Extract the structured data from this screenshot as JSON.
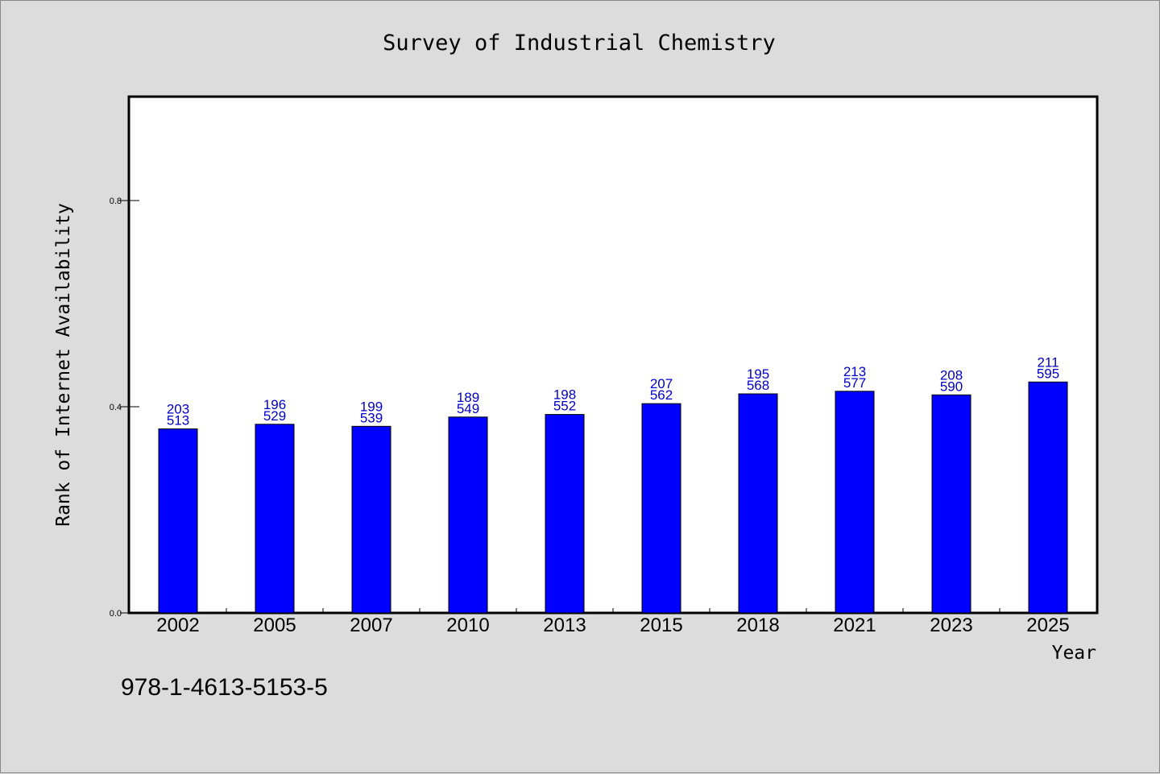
{
  "chart_data": {
    "type": "bar",
    "title": "Survey of Industrial Chemistry",
    "xlabel": "Year",
    "ylabel": "Rank of Internet Availability",
    "categories": [
      "2002",
      "2005",
      "2007",
      "2010",
      "2013",
      "2015",
      "2018",
      "2021",
      "2023",
      "2025"
    ],
    "values": [
      0.357,
      0.366,
      0.362,
      0.38,
      0.385,
      0.406,
      0.425,
      0.43,
      0.423,
      0.448
    ],
    "data_labels": [
      [
        "203",
        "513"
      ],
      [
        "196",
        "529"
      ],
      [
        "199",
        "539"
      ],
      [
        "189",
        "549"
      ],
      [
        "198",
        "552"
      ],
      [
        "207",
        "562"
      ],
      [
        "195",
        "568"
      ],
      [
        "213",
        "577"
      ],
      [
        "208",
        "590"
      ],
      [
        "211",
        "595"
      ]
    ],
    "yticks": [
      "0.0",
      "0.4",
      "0.8"
    ],
    "ylim": [
      0,
      1.0
    ],
    "bar_color": "#0000ff",
    "label_color": "#0000cc",
    "grid": false,
    "legend": false
  },
  "footnote": "978-1-4613-5153-5"
}
